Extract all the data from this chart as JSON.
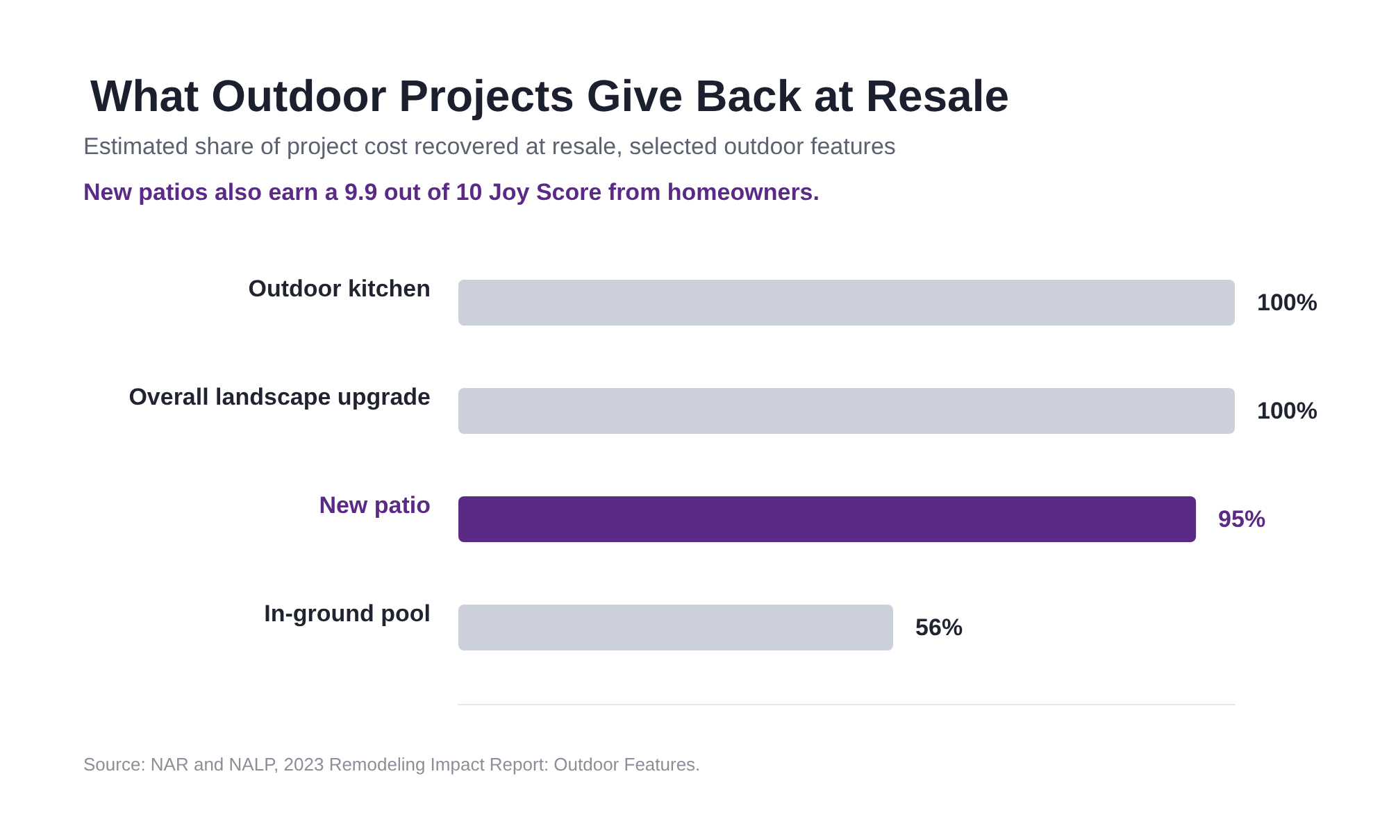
{
  "chart_data": {
    "type": "bar",
    "orientation": "horizontal",
    "title": "What Outdoor Projects Give Back at Resale",
    "subtitle": "Estimated share of project cost recovered at resale, selected outdoor features",
    "annotations": [
      "New patios also earn a 9.9 out of 10 Joy Score from homeowners.",
      "Source: NAR and NALP, 2023 Remodeling Impact Report: Outdoor Features."
    ],
    "categories": [
      "Outdoor kitchen",
      "Overall landscape upgrade",
      "New patio",
      "In-ground pool"
    ],
    "values": [
      100,
      100,
      95,
      56
    ],
    "colors": [
      "#cbd0db",
      "#cbd0db",
      "#5b2a86",
      "#cbd0db"
    ],
    "value_labels": [
      "100%",
      "100%",
      "95%",
      "56%"
    ],
    "xlim": [
      0,
      100
    ],
    "grid": false
  }
}
